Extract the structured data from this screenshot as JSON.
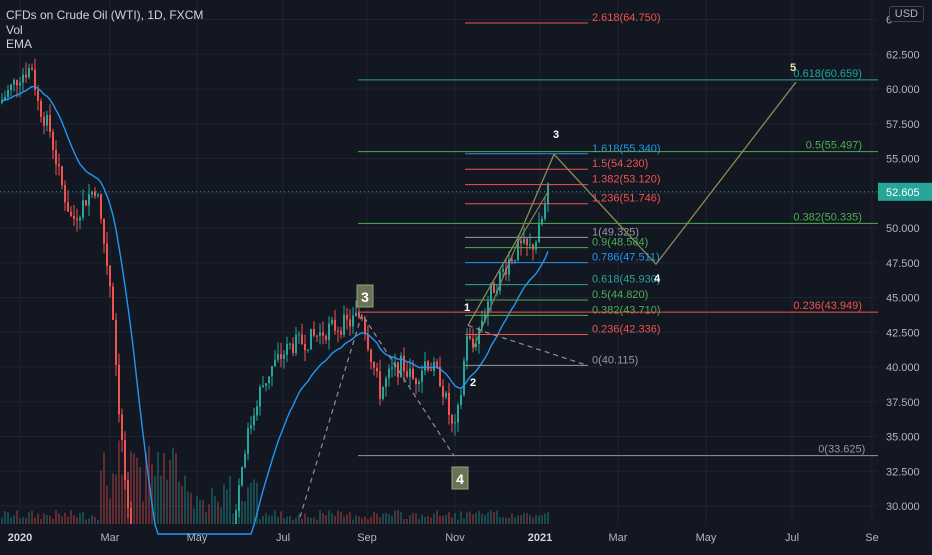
{
  "legend": {
    "symbol_line": "CFDs on Crude Oil (WTI), 1D, FXCM",
    "volume_label": "Vol",
    "ema_label": "EMA"
  },
  "currency_badge": "USD",
  "colors": {
    "background": "#131722",
    "grid": "#1f2330",
    "up": "#26a69a",
    "down": "#ef5350",
    "ema": "#2196f3",
    "wave": "#8a8a5a",
    "fib_text_red": "#ef5350",
    "fib_text_green": "#4caf50",
    "fib_text_teal": "#26a69a",
    "fib_text_gray": "#9598a1"
  },
  "chart_data": {
    "type": "candlestick",
    "x_tick_labels": [
      "2020",
      "Mar",
      "May",
      "Jul",
      "Sep",
      "Nov",
      "2021",
      "Mar",
      "May",
      "Jul",
      "Se"
    ],
    "y_ticks": [
      "30.000",
      "32.500",
      "35.000",
      "37.500",
      "40.000",
      "42.500",
      "45.000",
      "47.500",
      "50.000",
      "52.500",
      "55.000",
      "57.500",
      "60.000",
      "62.500",
      "6"
    ],
    "ylim": [
      29.0,
      65.5
    ],
    "last_price": "52.605",
    "fib_levels": [
      {
        "label": "2.618(64.750)",
        "value": 64.75,
        "color": "#ef5350"
      },
      {
        "label": "1.618(55.340)",
        "value": 55.34,
        "color": "#2196f3"
      },
      {
        "label": "1.5(54.230)",
        "value": 54.23,
        "color": "#ef5350"
      },
      {
        "label": "1.382(53.120)",
        "value": 53.12,
        "color": "#ef5350"
      },
      {
        "label": "1.236(51.746)",
        "value": 51.746,
        "color": "#ef5350"
      },
      {
        "label": "1(49.325)",
        "value": 49.325,
        "color": "#9598a1"
      },
      {
        "label": "0.9(48.584)",
        "value": 48.584,
        "color": "#4caf50"
      },
      {
        "label": "0.786(47.511)",
        "value": 47.511,
        "color": "#2196f3"
      },
      {
        "label": "0.618(45.930)",
        "value": 45.93,
        "color": "#26a69a"
      },
      {
        "label": "0.5(44.820)",
        "value": 44.82,
        "color": "#4caf50"
      },
      {
        "label": "0.382(43.710)",
        "value": 43.71,
        "color": "#4caf50"
      },
      {
        "label": "0.236(42.336)",
        "value": 42.336,
        "color": "#ef5350"
      },
      {
        "label": "0(40.115)",
        "value": 40.115,
        "color": "#9598a1"
      }
    ],
    "retracement_levels": [
      {
        "label": "0.618(60.659)",
        "value": 60.659,
        "color": "#26a69a"
      },
      {
        "label": "0.5(55.497)",
        "value": 55.497,
        "color": "#4caf50"
      },
      {
        "label": "0.382(50.335)",
        "value": 50.335,
        "color": "#4caf50"
      },
      {
        "label": "0.236(43.949)",
        "value": 43.949,
        "color": "#ef5350"
      },
      {
        "label": "0(33.625)",
        "value": 33.625,
        "color": "#9598a1"
      }
    ],
    "wave_labels": [
      "3",
      "4",
      "1",
      "2",
      "3",
      "4",
      "5"
    ]
  }
}
